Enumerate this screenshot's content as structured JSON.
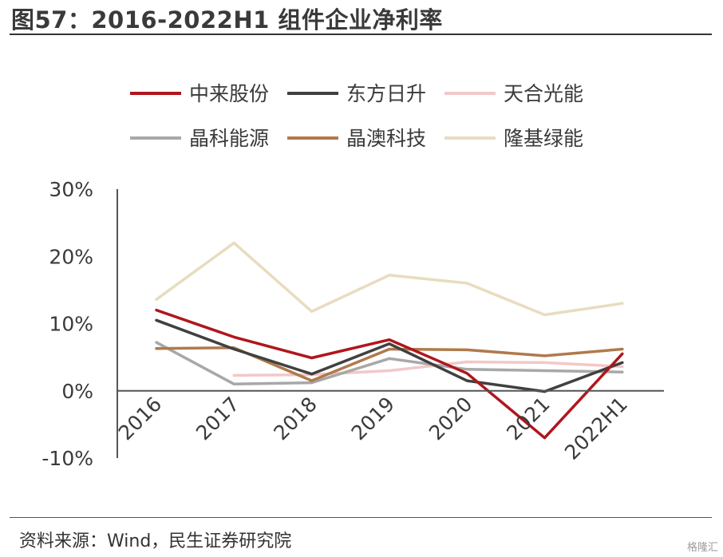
{
  "title": "图57：2016-2022H1 组件企业净利率",
  "source": "资料来源：Wind，民生证券研究院",
  "watermark": "格隆汇",
  "chart_data": {
    "type": "line",
    "title": "图57：2016-2022H1 组件企业净利率",
    "xlabel": "",
    "ylabel": "",
    "categories": [
      "2016",
      "2017",
      "2018",
      "2019",
      "2020",
      "2021",
      "2022H1"
    ],
    "yticks": [
      "30%",
      "20%",
      "10%",
      "0%",
      "-10%"
    ],
    "ylim": [
      -10,
      30
    ],
    "grid": false,
    "legend_position": "top",
    "series": [
      {
        "name": "中来股份",
        "color": "#b0161c",
        "values": [
          12.0,
          8.0,
          4.9,
          7.6,
          2.6,
          -7.0,
          5.5
        ]
      },
      {
        "name": "东方日升",
        "color": "#404040",
        "values": [
          10.5,
          6.2,
          2.5,
          7.0,
          1.5,
          -0.1,
          4.2
        ]
      },
      {
        "name": "天合光能",
        "color": "#f2c8c8",
        "values": [
          null,
          2.3,
          2.4,
          3.0,
          4.3,
          4.2,
          3.6
        ]
      },
      {
        "name": "晶科能源",
        "color": "#a8a8a8",
        "values": [
          7.2,
          1.0,
          1.2,
          4.8,
          3.2,
          3.0,
          2.8
        ]
      },
      {
        "name": "晶澳科技",
        "color": "#b07a4c",
        "values": [
          6.3,
          6.4,
          1.5,
          6.2,
          6.1,
          5.2,
          6.2
        ]
      },
      {
        "name": "隆基绿能",
        "color": "#e8dcc0",
        "values": [
          13.6,
          22.0,
          11.8,
          17.2,
          16.0,
          11.3,
          13.0
        ]
      }
    ]
  }
}
